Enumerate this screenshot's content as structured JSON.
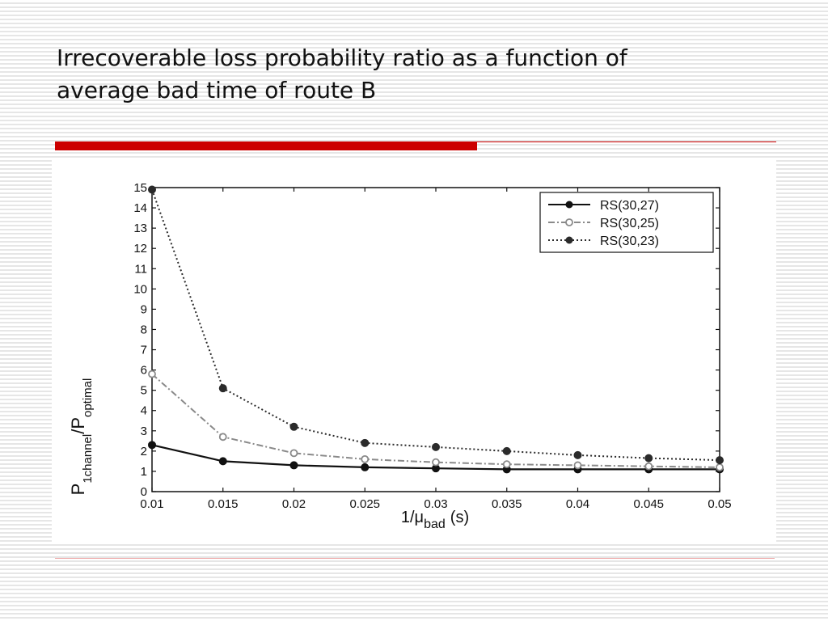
{
  "slide": {
    "title_line1": "Irrecoverable loss probability ratio as a function of",
    "title_line2": "average bad time of route B"
  },
  "colors": {
    "accent": "#cc0000",
    "series": [
      "#111111",
      "#8a8a8a",
      "#2b2b2b"
    ]
  },
  "chart_data": {
    "type": "line",
    "xlabel": "1/μ",
    "xlabel_sub": "bad",
    "xlabel_unit": "(s)",
    "ylabel": "P",
    "ylabel_sub1": "1channel",
    "ylabel_mid": "/P",
    "ylabel_sub2": "optimal",
    "x": [
      0.01,
      0.015,
      0.02,
      0.025,
      0.03,
      0.035,
      0.04,
      0.045,
      0.05
    ],
    "x_tick_labels": [
      "0.01",
      "0.015",
      "0.02",
      "0.025",
      "0.03",
      "0.035",
      "0.04",
      "0.045",
      "0.05"
    ],
    "xlim": [
      0.01,
      0.05
    ],
    "ylim": [
      0,
      15
    ],
    "y_ticks": [
      0,
      1,
      2,
      3,
      4,
      5,
      6,
      7,
      8,
      9,
      10,
      11,
      12,
      13,
      14,
      15
    ],
    "grid": false,
    "legend_position": "top-right",
    "series": [
      {
        "name": "RS(30,27)",
        "style": "solid",
        "marker": "dot",
        "color": "#111111",
        "values": [
          2.3,
          1.5,
          1.3,
          1.2,
          1.15,
          1.1,
          1.1,
          1.1,
          1.1
        ]
      },
      {
        "name": "RS(30,25)",
        "style": "dashdot",
        "marker": "circle",
        "color": "#8a8a8a",
        "values": [
          5.8,
          2.7,
          1.9,
          1.6,
          1.45,
          1.35,
          1.3,
          1.25,
          1.2
        ]
      },
      {
        "name": "RS(30,23)",
        "style": "dotted",
        "marker": "dot",
        "color": "#2b2b2b",
        "values": [
          14.9,
          5.1,
          3.2,
          2.4,
          2.2,
          2.0,
          1.8,
          1.65,
          1.55
        ]
      }
    ]
  }
}
